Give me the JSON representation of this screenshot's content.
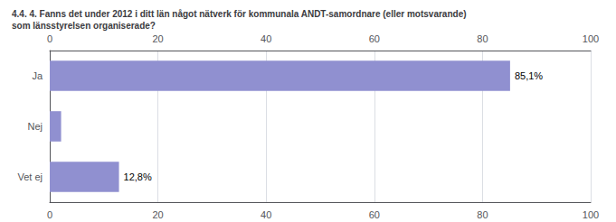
{
  "chart_data": {
    "type": "bar",
    "orientation": "horizontal",
    "title": "4.4. 4. Fanns det under 2012 i ditt län något nätverk för kommunala ANDT-samordnare (eller motsvarande)\nsom länsstyrelsen organiserade?",
    "categories": [
      "Ja",
      "Nej",
      "Vet ej"
    ],
    "values": [
      85.1,
      2.1,
      12.8
    ],
    "value_labels": [
      "85,1%",
      null,
      "12,8%"
    ],
    "data_labels": true,
    "color": "#9090d0",
    "xlim": [
      0,
      100
    ],
    "xticks": [
      0,
      20,
      40,
      60,
      80,
      100
    ],
    "grid": true
  }
}
